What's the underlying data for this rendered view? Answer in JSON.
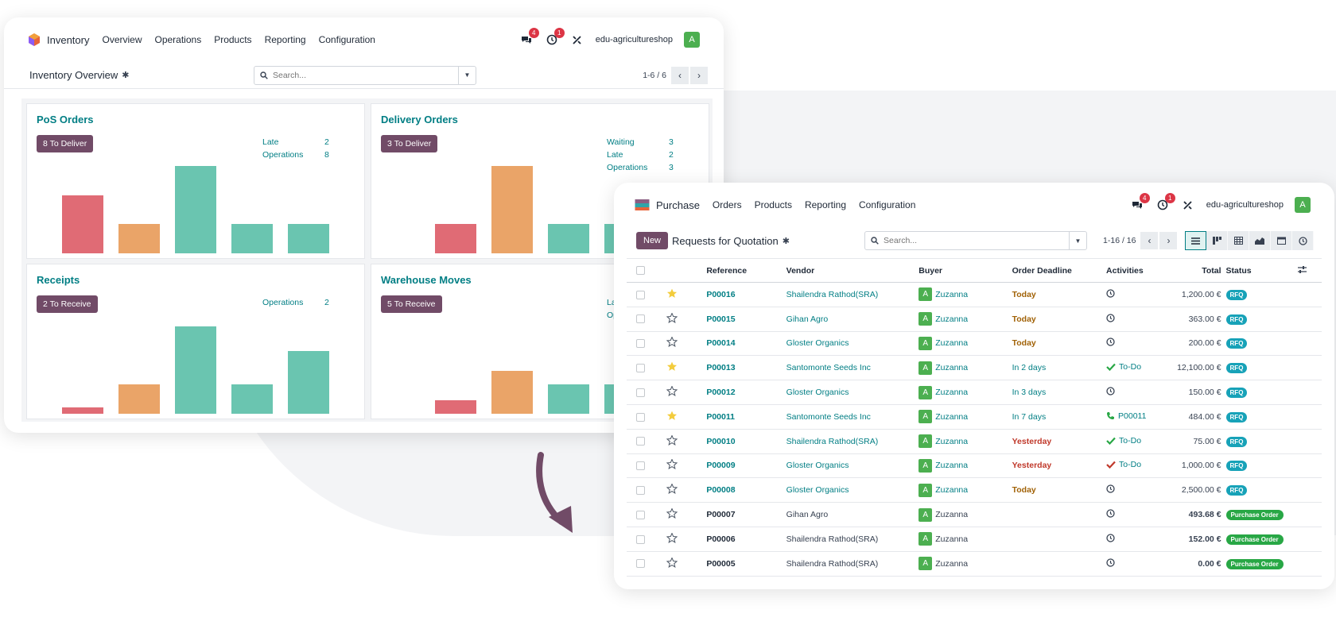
{
  "inventory": {
    "app_name": "Inventory",
    "menu": [
      "Overview",
      "Operations",
      "Products",
      "Reporting",
      "Configuration"
    ],
    "messages_count": "4",
    "activities_count": "1",
    "company": "edu-agricultureshop",
    "avatar_letter": "A",
    "page_title": "Inventory Overview",
    "search_placeholder": "Search...",
    "pager": "1-6 / 6",
    "cards": [
      {
        "title": "PoS Orders",
        "button": "8 To Deliver",
        "stats": [
          {
            "label": "Late",
            "value": "2"
          },
          {
            "label": "Operations",
            "value": "8"
          }
        ],
        "bars": [
          0.62,
          0.31,
          0.93,
          0.31,
          0.31
        ],
        "bar_colors": [
          "#e06b75",
          "#eaa468",
          "#6ac5b0",
          "#6ac5b0",
          "#6ac5b0"
        ]
      },
      {
        "title": "Delivery Orders",
        "button": "3 To Deliver",
        "stats": [
          {
            "label": "Waiting",
            "value": "3"
          },
          {
            "label": "Late",
            "value": "2"
          },
          {
            "label": "Operations",
            "value": "3"
          }
        ],
        "bars": [
          0.31,
          0.93,
          0.31,
          0.31
        ],
        "bar_colors": [
          "#e06b75",
          "#eaa468",
          "#6ac5b0",
          "#6ac5b0"
        ]
      },
      {
        "title": "Receipts",
        "button": "2 To Receive",
        "stats": [
          {
            "label": "Operations",
            "value": "2"
          }
        ],
        "bars": [
          0.07,
          0.31,
          0.93,
          0.31,
          0.67
        ],
        "bar_colors": [
          "#e06b75",
          "#eaa468",
          "#6ac5b0",
          "#6ac5b0",
          "#6ac5b0"
        ]
      },
      {
        "title": "Warehouse Moves",
        "button": "5 To Receive",
        "stats": [
          {
            "label": "Lat",
            "value": ""
          },
          {
            "label": "Op",
            "value": ""
          }
        ],
        "bars": [
          0.14,
          0.46,
          0.31,
          0.31
        ],
        "bar_colors": [
          "#e06b75",
          "#eaa468",
          "#6ac5b0",
          "#6ac5b0"
        ]
      }
    ]
  },
  "purchase": {
    "app_name": "Purchase",
    "menu": [
      "Orders",
      "Products",
      "Reporting",
      "Configuration"
    ],
    "messages_count": "4",
    "activities_count": "1",
    "company": "edu-agricultureshop",
    "avatar_letter": "A",
    "new_button": "New",
    "page_title": "Requests for Quotation",
    "search_placeholder": "Search...",
    "pager": "1-16 / 16",
    "columns": [
      "Reference",
      "Vendor",
      "Buyer",
      "Order Deadline",
      "Activities",
      "Total",
      "Status"
    ],
    "rows": [
      {
        "starred": true,
        "ref": "P00016",
        "vendor": "Shailendra Rathod(SRA)",
        "buyer": "Zuzanna",
        "deadline": "Today",
        "deadline_type": "warn",
        "activity": "clock",
        "activity_text": "",
        "total": "1,200.00 €",
        "status": "RFQ",
        "status_type": "rfq"
      },
      {
        "starred": false,
        "ref": "P00015",
        "vendor": "Gihan Agro",
        "buyer": "Zuzanna",
        "deadline": "Today",
        "deadline_type": "warn",
        "activity": "clock",
        "activity_text": "",
        "total": "363.00 €",
        "status": "RFQ",
        "status_type": "rfq"
      },
      {
        "starred": false,
        "ref": "P00014",
        "vendor": "Gloster Organics",
        "buyer": "Zuzanna",
        "deadline": "Today",
        "deadline_type": "warn",
        "activity": "clock",
        "activity_text": "",
        "total": "200.00 €",
        "status": "RFQ",
        "status_type": "rfq"
      },
      {
        "starred": true,
        "ref": "P00013",
        "vendor": "Santomonte Seeds Inc",
        "buyer": "Zuzanna",
        "deadline": "In 2 days",
        "deadline_type": "info",
        "activity": "check-green",
        "activity_text": "To-Do",
        "total": "12,100.00 €",
        "status": "RFQ",
        "status_type": "rfq"
      },
      {
        "starred": false,
        "ref": "P00012",
        "vendor": "Gloster Organics",
        "buyer": "Zuzanna",
        "deadline": "In 3 days",
        "deadline_type": "info",
        "activity": "clock",
        "activity_text": "",
        "total": "150.00 €",
        "status": "RFQ",
        "status_type": "rfq"
      },
      {
        "starred": true,
        "ref": "P00011",
        "vendor": "Santomonte Seeds Inc",
        "buyer": "Zuzanna",
        "deadline": "In 7 days",
        "deadline_type": "info",
        "activity": "phone",
        "activity_text": "P00011",
        "total": "484.00 €",
        "status": "RFQ",
        "status_type": "rfq"
      },
      {
        "starred": false,
        "ref": "P00010",
        "vendor": "Shailendra Rathod(SRA)",
        "buyer": "Zuzanna",
        "deadline": "Yesterday",
        "deadline_type": "danger",
        "activity": "check-green",
        "activity_text": "To-Do",
        "total": "75.00 €",
        "status": "RFQ",
        "status_type": "rfq"
      },
      {
        "starred": false,
        "ref": "P00009",
        "vendor": "Gloster Organics",
        "buyer": "Zuzanna",
        "deadline": "Yesterday",
        "deadline_type": "danger",
        "activity": "check-red",
        "activity_text": "To-Do",
        "total": "1,000.00 €",
        "status": "RFQ",
        "status_type": "rfq"
      },
      {
        "starred": false,
        "ref": "P00008",
        "vendor": "Gloster Organics",
        "buyer": "Zuzanna",
        "deadline": "Today",
        "deadline_type": "warn",
        "activity": "clock",
        "activity_text": "",
        "total": "2,500.00 €",
        "status": "RFQ",
        "status_type": "rfq"
      },
      {
        "starred": false,
        "ref": "P00007",
        "vendor": "Gihan Agro",
        "buyer": "Zuzanna",
        "deadline": "",
        "deadline_type": "none",
        "activity": "clock",
        "activity_text": "",
        "total": "493.68 €",
        "status": "Purchase Order",
        "status_type": "po"
      },
      {
        "starred": false,
        "ref": "P00006",
        "vendor": "Shailendra Rathod(SRA)",
        "buyer": "Zuzanna",
        "deadline": "",
        "deadline_type": "none",
        "activity": "clock",
        "activity_text": "",
        "total": "152.00 €",
        "status": "Purchase Order",
        "status_type": "po"
      },
      {
        "starred": false,
        "ref": "P00005",
        "vendor": "Shailendra Rathod(SRA)",
        "buyer": "Zuzanna",
        "deadline": "",
        "deadline_type": "none",
        "activity": "clock",
        "activity_text": "",
        "total": "0.00 €",
        "status": "Purchase Order",
        "status_type": "po"
      }
    ]
  },
  "colors": {
    "brand": "#714b67",
    "accent": "#017e84",
    "rfq": "#17a2b8",
    "po": "#28a745",
    "star": "#f3cc3c"
  }
}
